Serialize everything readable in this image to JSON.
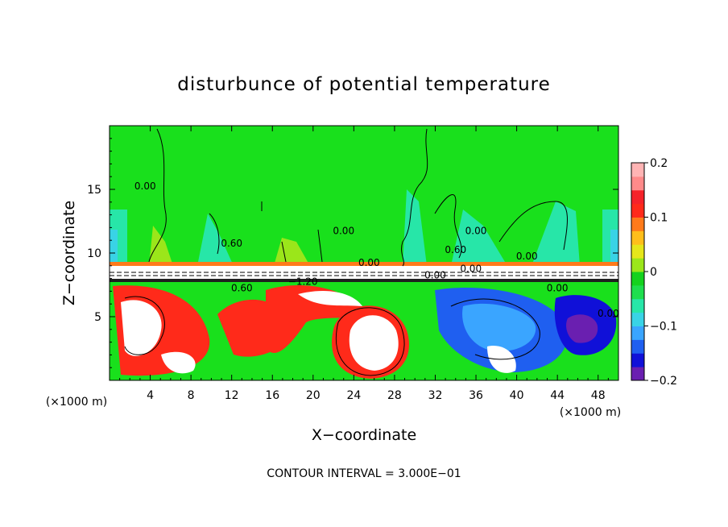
{
  "chart_data": {
    "type": "heatmap",
    "title": "disturbunce of potential temperature",
    "xlabel": "X−coordinate",
    "ylabel": "Z−coordinate",
    "x_unit": "(×1000 m)",
    "xlim": [
      0,
      50
    ],
    "ylim": [
      0,
      20
    ],
    "x_ticks": [
      "4",
      "8",
      "12",
      "16",
      "20",
      "24",
      "28",
      "32",
      "36",
      "40",
      "44",
      "48"
    ],
    "y_ticks": [
      "5",
      "10",
      "15"
    ],
    "colorbar": {
      "range": [
        -0.2,
        0.2
      ],
      "tick_labels": [
        "0.2",
        "0.1",
        "0",
        "−0.1",
        "−0.2"
      ],
      "colors": [
        "#6a1fb0",
        "#1010d8",
        "#1f5ff0",
        "#3aa5ff",
        "#39d3e6",
        "#27e6a8",
        "#1ede4e",
        "#14d21e",
        "#9be61a",
        "#e6e61a",
        "#ffbe1a",
        "#ff7a1a",
        "#ff2a1a",
        "#f5222a",
        "#ff8a8a",
        "#ffb4b4"
      ]
    },
    "contour_labels": [
      "0.00",
      "0.00",
      "0.00",
      "0.60",
      "0.60",
      "−1.20",
      "0.00",
      "0.00",
      "0.00",
      "0.00",
      "0.60",
      "0.00",
      "0.00"
    ],
    "footer": "CONTOUR INTERVAL = 3.000E−01"
  }
}
